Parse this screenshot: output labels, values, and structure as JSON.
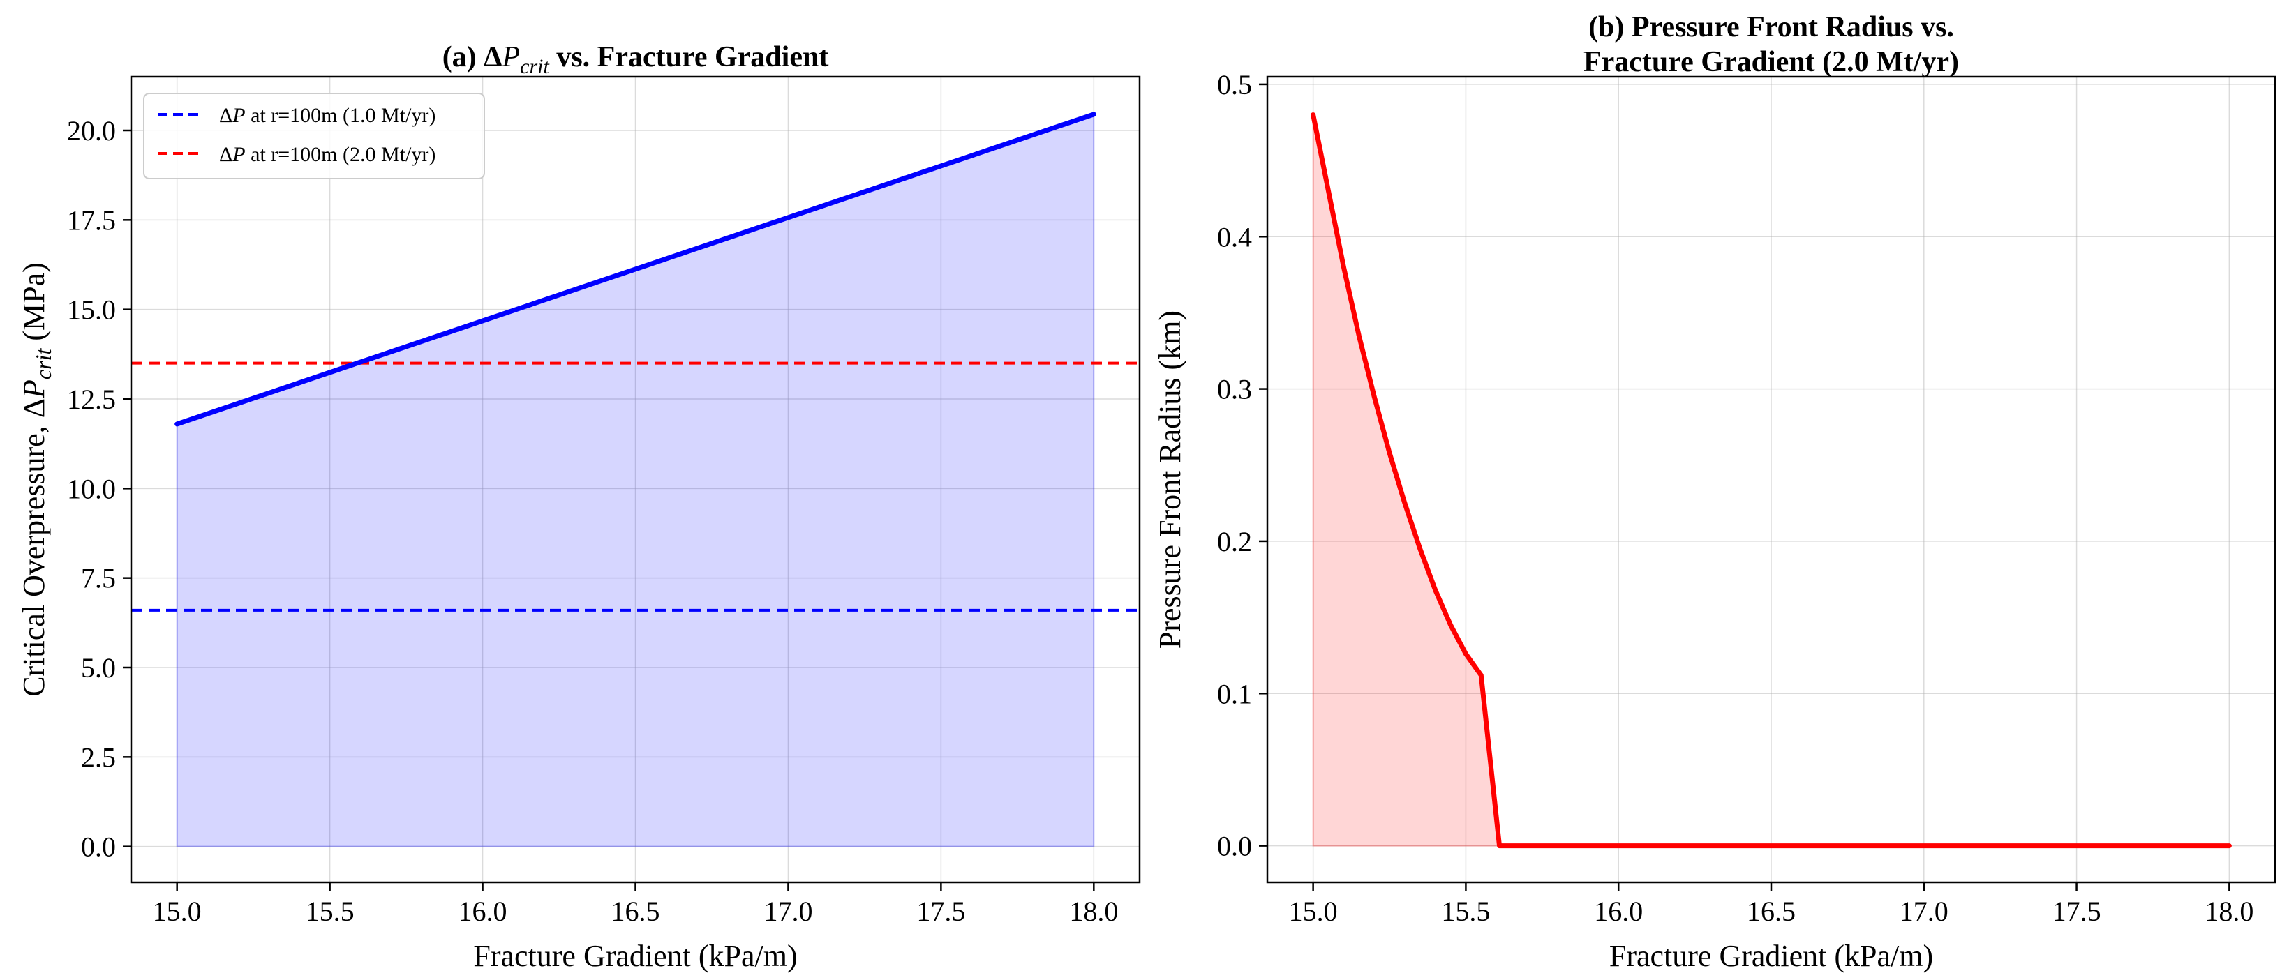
{
  "chart_data": [
    {
      "type": "area",
      "title": "(a) ΔP_crit vs. Fracture Gradient",
      "title_parts": {
        "prefix": "(a) Δ",
        "italic_var": "P",
        "subscript": "crit",
        "suffix": " vs. Fracture Gradient"
      },
      "xlabel": "Fracture Gradient (kPa/m)",
      "ylabel": "Critical Overpressure, ΔP_crit (MPa)",
      "ylabel_parts": {
        "prefix": "Critical Overpressure, Δ",
        "italic_var": "P",
        "subscript": "crit",
        "suffix": " (MPa)"
      },
      "xlim": [
        14.85,
        18.15
      ],
      "ylim": [
        -1.0,
        21.5
      ],
      "xticks": [
        15.0,
        15.5,
        16.0,
        16.5,
        17.0,
        17.5,
        18.0
      ],
      "xtick_labels": [
        "15.0",
        "15.5",
        "16.0",
        "16.5",
        "17.0",
        "17.5",
        "18.0"
      ],
      "yticks": [
        0.0,
        2.5,
        5.0,
        7.5,
        10.0,
        12.5,
        15.0,
        17.5,
        20.0
      ],
      "ytick_labels": [
        "0.0",
        "2.5",
        "5.0",
        "7.5",
        "10.0",
        "12.5",
        "15.0",
        "17.5",
        "20.0"
      ],
      "grid": true,
      "legend_position": "top-left",
      "series": [
        {
          "name": "",
          "kind": "line-fill",
          "color": "#0000ff",
          "fill_color": "#0000ff",
          "fill_opacity": 0.16,
          "x": [
            15.0,
            18.0
          ],
          "y": [
            11.8,
            20.45
          ]
        }
      ],
      "reference_lines": [
        {
          "name": "ΔP at r=100m (1.0 Mt/yr)",
          "label_parts": {
            "prefix": "Δ",
            "italic_var": "P",
            "suffix": " at r=100m (1.0 Mt/yr)"
          },
          "y": 6.6,
          "color": "#0000ff",
          "style": "dashed"
        },
        {
          "name": "ΔP at r=100m (2.0 Mt/yr)",
          "label_parts": {
            "prefix": "Δ",
            "italic_var": "P",
            "suffix": " at r=100m (2.0 Mt/yr)"
          },
          "y": 13.5,
          "color": "#ff0000",
          "style": "dashed"
        }
      ]
    },
    {
      "type": "area",
      "title": "(b) Pressure Front Radius vs.\nFracture Gradient (2.0 Mt/yr)",
      "title_lines": [
        "(b) Pressure Front Radius vs.",
        "Fracture Gradient (2.0 Mt/yr)"
      ],
      "xlabel": "Fracture Gradient (kPa/m)",
      "ylabel": "Pressure Front Radius (km)",
      "xlim": [
        14.85,
        18.15
      ],
      "ylim": [
        -0.024,
        0.505
      ],
      "xticks": [
        15.0,
        15.5,
        16.0,
        16.5,
        17.0,
        17.5,
        18.0
      ],
      "xtick_labels": [
        "15.0",
        "15.5",
        "16.0",
        "16.5",
        "17.0",
        "17.5",
        "18.0"
      ],
      "yticks": [
        0.0,
        0.1,
        0.2,
        0.3,
        0.4,
        0.5
      ],
      "ytick_labels": [
        "0.0",
        "0.1",
        "0.2",
        "0.3",
        "0.4",
        "0.5"
      ],
      "grid": true,
      "series": [
        {
          "name": "",
          "kind": "line-fill",
          "color": "#ff0000",
          "fill_color": "#ff0000",
          "fill_opacity": 0.16,
          "x": [
            15.0,
            15.05,
            15.1,
            15.15,
            15.2,
            15.25,
            15.3,
            15.35,
            15.4,
            15.45,
            15.5,
            15.55,
            15.61,
            15.7,
            16.0,
            16.5,
            17.0,
            17.5,
            18.0
          ],
          "y": [
            0.48,
            0.43,
            0.38,
            0.335,
            0.295,
            0.258,
            0.225,
            0.195,
            0.168,
            0.145,
            0.126,
            0.112,
            0.0,
            0.0,
            0.0,
            0.0,
            0.0,
            0.0,
            0.0
          ]
        }
      ]
    }
  ]
}
